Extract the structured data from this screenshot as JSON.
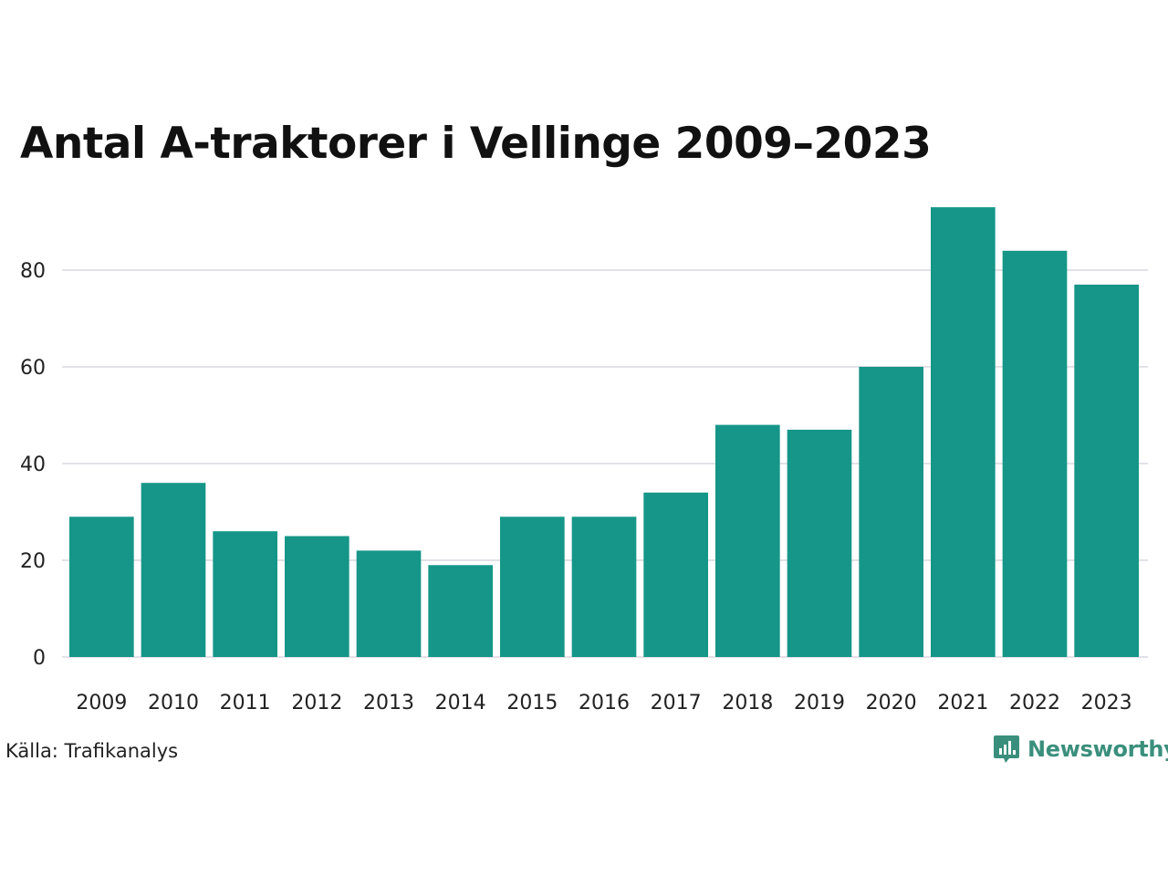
{
  "chart_data": {
    "type": "bar",
    "title": "Antal A-traktorer i Vellinge 2009–2023",
    "categories": [
      "2009",
      "2010",
      "2011",
      "2012",
      "2013",
      "2014",
      "2015",
      "2016",
      "2017",
      "2018",
      "2019",
      "2020",
      "2021",
      "2022",
      "2023"
    ],
    "values": [
      29,
      36,
      26,
      25,
      22,
      19,
      29,
      29,
      34,
      48,
      47,
      60,
      93,
      84,
      77
    ],
    "xlabel": "",
    "ylabel": "",
    "ylim": [
      0,
      100
    ],
    "yticks": [
      0,
      20,
      40,
      60,
      80
    ],
    "grid": true,
    "bar_color": "#159688",
    "grid_color": "#e3e1e8"
  },
  "footer": {
    "source": "Källa: Trafikanalys",
    "brand": "Newsworthy",
    "brand_icon": "newsworthy-logo-icon",
    "brand_color": "#3a8f7c"
  }
}
